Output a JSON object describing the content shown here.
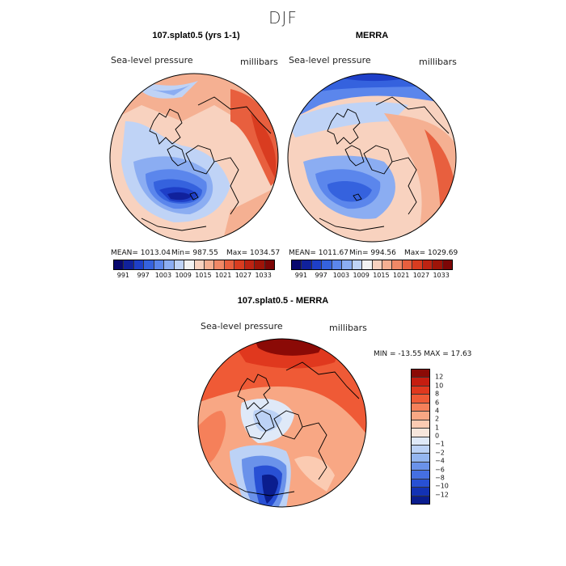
{
  "figure": {
    "title": "DJF"
  },
  "panels": {
    "model": {
      "title": "107.splat0.5 (yrs 1-1)",
      "variable": "Sea-level pressure",
      "units": "millibars",
      "mean_label": "MEAN= 1013.04",
      "min_label": "Min= 987.55",
      "max_label": "Max= 1034.57"
    },
    "obs": {
      "title": "MERRA",
      "variable": "Sea-level pressure",
      "units": "millibars",
      "mean_label": "MEAN= 1011.67",
      "min_label": "Min= 994.56",
      "max_label": "Max= 1029.69"
    },
    "diff": {
      "title": "107.splat0.5 - MERRA",
      "variable": "Sea-level pressure",
      "units": "millibars",
      "minmax_label": "MIN = -13.55 MAX =  17.63"
    }
  },
  "colorbar_abs": {
    "ticks": [
      "991",
      "997",
      "1003",
      "1009",
      "1015",
      "1021",
      "1027",
      "1033"
    ],
    "colors": [
      "#08086e",
      "#10219c",
      "#1e3fc8",
      "#3562de",
      "#5b86ec",
      "#8badf2",
      "#bfd3f6",
      "#f2f2f2",
      "#f8d2bf",
      "#f5b092",
      "#f08866",
      "#e85f3e",
      "#d93c20",
      "#bd2312",
      "#9e1408",
      "#7c0606"
    ]
  },
  "colorbar_diff": {
    "ticks": [
      "12",
      "10",
      "8",
      "6",
      "4",
      "2",
      "1",
      "0",
      "−1",
      "−2",
      "−4",
      "−6",
      "−8",
      "−10",
      "−12"
    ],
    "colors": [
      "#8b0a06",
      "#c51d10",
      "#e0381e",
      "#ef5a36",
      "#f5805a",
      "#f8a784",
      "#fbcbb2",
      "#f6e6dc",
      "#dfe9f8",
      "#bcd2f6",
      "#94b6f0",
      "#6a92ea",
      "#456fe2",
      "#2850d4",
      "#1332b4",
      "#0a1d8e"
    ]
  }
}
